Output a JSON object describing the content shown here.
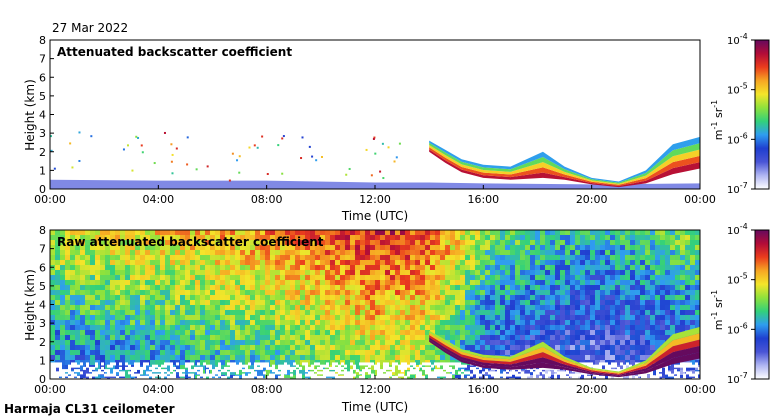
{
  "header": {
    "date": "27 Mar 2022"
  },
  "footer": {
    "station": "Harmaja CL31 ceilometer"
  },
  "colorbar": {
    "unit_base": "m",
    "unit_exp1": "-1",
    "unit_mid": " sr",
    "unit_exp2": "-1",
    "ticks": [
      {
        "base": "10",
        "exp": "-4",
        "value": -4
      },
      {
        "base": "10",
        "exp": "-5",
        "value": -5
      },
      {
        "base": "10",
        "exp": "-6",
        "value": -6
      },
      {
        "base": "10",
        "exp": "-7",
        "value": -7
      }
    ],
    "colors": [
      "#ffffff",
      "#b0b6f2",
      "#4a55d6",
      "#1f3fd0",
      "#2f9df0",
      "#33d17a",
      "#8fe23c",
      "#f4e52a",
      "#f6a623",
      "#ea3c1d",
      "#b20c38",
      "#650a5e"
    ]
  },
  "chart_data": [
    {
      "type": "heatmap",
      "title": "Attenuated backscatter coefficient",
      "xlabel": "Time (UTC)",
      "ylabel": "Height (km)",
      "xlim": [
        0,
        24
      ],
      "ylim": [
        0,
        8
      ],
      "x_ticks": [
        "00:00",
        "04:00",
        "08:00",
        "12:00",
        "16:00",
        "20:00",
        "00:00"
      ],
      "y_ticks": [
        "0",
        "1",
        "2",
        "3",
        "4",
        "5",
        "6",
        "7",
        "8"
      ],
      "colorbar_range_log10": [
        -7,
        -4
      ],
      "colorbar_label": "m-1 sr-1",
      "layers": [
        {
          "name": "surface layer",
          "time": [
            0,
            4,
            8,
            12,
            14,
            16,
            20,
            24
          ],
          "top_km": [
            0.5,
            0.45,
            0.45,
            0.35,
            0.35,
            0.3,
            0.25,
            0.3
          ],
          "log10_value": -6.6
        },
        {
          "name": "descending feature",
          "time": [
            14.0,
            14.6,
            15.2,
            16.0,
            17.0,
            18.2,
            19.0,
            20.0,
            21.0,
            22.0,
            23.0,
            24.0
          ],
          "bottom_km": [
            2.0,
            1.4,
            0.9,
            0.6,
            0.5,
            0.6,
            0.5,
            0.25,
            0.1,
            0.3,
            0.8,
            1.1
          ],
          "top_km": [
            2.6,
            2.1,
            1.6,
            1.3,
            1.2,
            2.0,
            1.2,
            0.6,
            0.4,
            1.0,
            2.4,
            2.8
          ],
          "log10_value": -5.0
        }
      ]
    },
    {
      "type": "heatmap",
      "title": "Raw attenuated backscatter coefficient",
      "xlabel": "Time (UTC)",
      "ylabel": "Height (km)",
      "xlim": [
        0,
        24
      ],
      "ylim": [
        0,
        8
      ],
      "x_ticks": [
        "00:00",
        "04:00",
        "08:00",
        "12:00",
        "16:00",
        "20:00",
        "00:00"
      ],
      "y_ticks": [
        "0",
        "1",
        "2",
        "3",
        "4",
        "5",
        "6",
        "7",
        "8"
      ],
      "colorbar_range_log10": [
        -7,
        -4
      ],
      "colorbar_label": "m-1 sr-1",
      "background": {
        "time": [
          0,
          4,
          8,
          12,
          14,
          16,
          20,
          24
        ],
        "log10_value_low": [
          -6.2,
          -6.0,
          -5.8,
          -5.4,
          -5.5,
          -6.4,
          -6.6,
          -6.4
        ],
        "log10_value_high": [
          -5.2,
          -5.0,
          -4.8,
          -4.4,
          -4.6,
          -5.4,
          -5.8,
          -5.4
        ]
      },
      "layers": [
        {
          "name": "descending feature",
          "time": [
            14.0,
            14.6,
            15.2,
            16.0,
            17.0,
            18.2,
            19.0,
            20.0,
            21.0,
            22.0,
            23.0,
            24.0
          ],
          "bottom_km": [
            2.0,
            1.4,
            0.9,
            0.6,
            0.5,
            0.6,
            0.5,
            0.25,
            0.1,
            0.3,
            0.8,
            1.1
          ],
          "top_km": [
            2.6,
            2.1,
            1.6,
            1.3,
            1.2,
            2.0,
            1.2,
            0.6,
            0.4,
            1.0,
            2.4,
            2.8
          ],
          "log10_value": -4.4
        }
      ]
    }
  ]
}
